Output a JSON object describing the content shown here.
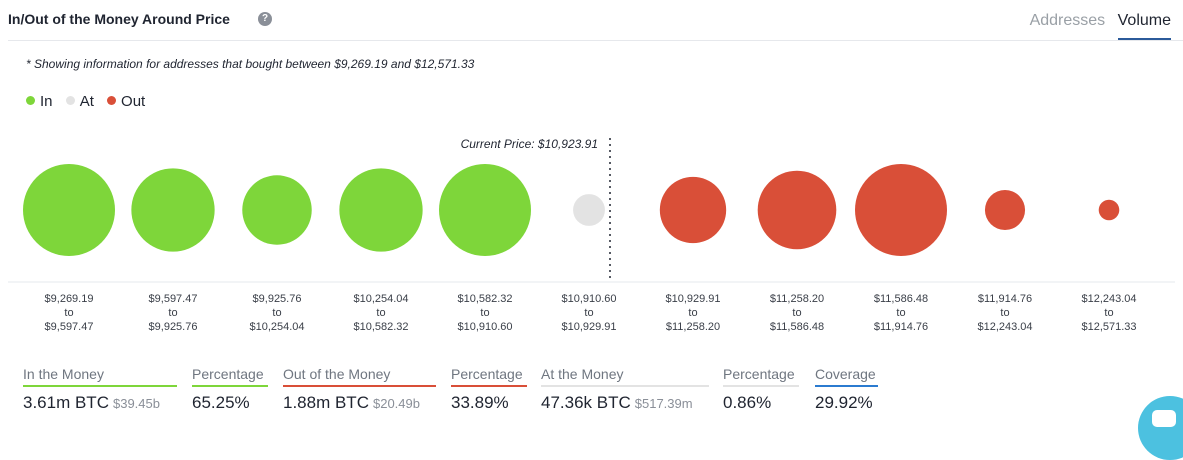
{
  "header": {
    "title": "In/Out of the Money Around Price",
    "help_icon": "?",
    "tabs": [
      {
        "label": "Addresses",
        "active": false
      },
      {
        "label": "Volume",
        "active": true
      }
    ]
  },
  "note": "* Showing information for addresses that bought between $9,269.19 and $12,571.33",
  "legend": [
    {
      "label": "In",
      "color": "#7ed63a"
    },
    {
      "label": "At",
      "color": "#e3e3e3"
    },
    {
      "label": "Out",
      "color": "#d94f38"
    }
  ],
  "chart_data": {
    "type": "bubble",
    "current_price_label": "Current Price: $10,923.91",
    "current_price_after_index": 5,
    "buckets": [
      {
        "from": "$9,269.19",
        "to": "$9,597.47",
        "status": "in",
        "size": 1.0
      },
      {
        "from": "$9,597.47",
        "to": "$9,925.76",
        "status": "in",
        "size": 0.82
      },
      {
        "from": "$9,925.76",
        "to": "$10,254.04",
        "status": "in",
        "size": 0.57
      },
      {
        "from": "$10,254.04",
        "to": "$10,582.32",
        "status": "in",
        "size": 0.82
      },
      {
        "from": "$10,582.32",
        "to": "$10,910.60",
        "status": "in",
        "size": 1.0
      },
      {
        "from": "$10,910.60",
        "to": "$10,929.91",
        "status": "at",
        "size": 0.12
      },
      {
        "from": "$10,929.91",
        "to": "$11,258.20",
        "status": "out",
        "size": 0.52
      },
      {
        "from": "$11,258.20",
        "to": "$11,586.48",
        "status": "out",
        "size": 0.73
      },
      {
        "from": "$11,586.48",
        "to": "$11,914.76",
        "status": "out",
        "size": 1.0
      },
      {
        "from": "$11,914.76",
        "to": "$12,243.04",
        "status": "out",
        "size": 0.19
      },
      {
        "from": "$12,243.04",
        "to": "$12,571.33",
        "status": "out",
        "size": 0.05
      }
    ],
    "to_word": "to",
    "colors": {
      "in": "#7ed63a",
      "at": "#e3e3e3",
      "out": "#d94f38"
    }
  },
  "stats": {
    "in_money": {
      "label": "In the Money",
      "value": "3.61m BTC",
      "usd": "$39.45b",
      "color": "#7ed63a"
    },
    "in_pct": {
      "label": "Percentage",
      "value": "65.25%",
      "color": "#7ed63a"
    },
    "out_money": {
      "label": "Out of the Money",
      "value": "1.88m BTC",
      "usd": "$20.49b",
      "color": "#d94f38"
    },
    "out_pct": {
      "label": "Percentage",
      "value": "33.89%",
      "color": "#d94f38"
    },
    "at_money": {
      "label": "At the Money",
      "value": "47.36k BTC",
      "usd": "$517.39m",
      "color": "#e3e3e3"
    },
    "at_pct": {
      "label": "Percentage",
      "value": "0.86%",
      "color": "#e3e3e3"
    },
    "coverage": {
      "label": "Coverage",
      "value": "29.92%",
      "color": "#2b7bd0"
    }
  }
}
